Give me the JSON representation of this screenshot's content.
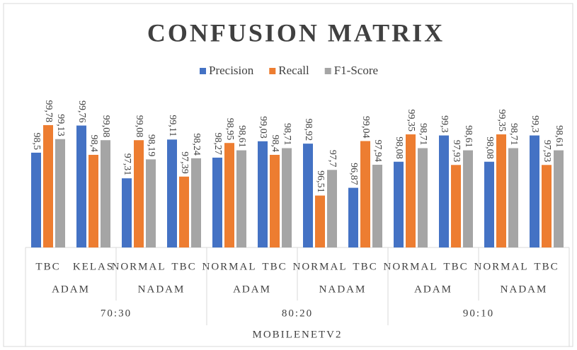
{
  "chart_data": {
    "type": "bar",
    "title": "CONFUSION MATRIX",
    "categories": [
      "TBC",
      "KELAS",
      "NORMAL",
      "TBC",
      "NORMAL",
      "TBC",
      "NORMAL",
      "TBC",
      "NORMAL",
      "TBC",
      "NORMAL",
      "TBC"
    ],
    "groups": [
      "ADAM",
      "NADAM",
      "ADAM",
      "NADAM",
      "ADAM",
      "NADAM"
    ],
    "splits": [
      "70:30",
      "80:20",
      "90:10"
    ],
    "model": "MOBILENETV2",
    "series": [
      {
        "name": "Precision",
        "color": "#4472c4",
        "values": [
          98.5,
          99.76,
          97.31,
          99.11,
          98.27,
          99.03,
          98.92,
          96.87,
          98.08,
          99.3,
          98.08,
          99.3
        ],
        "value_labels": [
          "98,5",
          "99,76",
          "97,31",
          "99,11",
          "98,27",
          "99,03",
          "98,92",
          "96,87",
          "98,08",
          "99,3",
          "98,08",
          "99,3"
        ]
      },
      {
        "name": "Recall",
        "color": "#ed7d31",
        "values": [
          99.78,
          98.4,
          99.08,
          97.39,
          98.95,
          98.4,
          96.51,
          99.04,
          99.35,
          97.93,
          99.35,
          97.93
        ],
        "value_labels": [
          "99,78",
          "98,4",
          "99,08",
          "97,39",
          "98,95",
          "98,4",
          "96,51",
          "99,04",
          "99,35",
          "97,93",
          "99,35",
          "97,93"
        ]
      },
      {
        "name": "F1-Score",
        "color": "#a5a5a5",
        "values": [
          99.13,
          99.08,
          98.19,
          98.24,
          98.61,
          98.71,
          97.7,
          97.94,
          98.71,
          98.61,
          98.71,
          98.61
        ],
        "value_labels": [
          "99,13",
          "99,08",
          "98,19",
          "98,24",
          "98,61",
          "98,71",
          "97,7",
          "97,94",
          "98,71",
          "98,61",
          "98,71",
          "98,61"
        ]
      }
    ],
    "ylim": [
      94.1,
      100.5
    ]
  }
}
